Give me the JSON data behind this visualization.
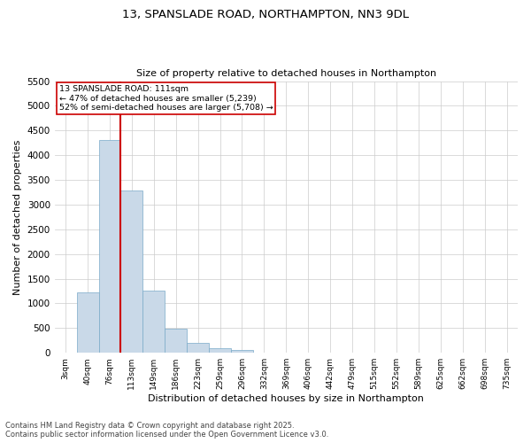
{
  "title1": "13, SPANSLADE ROAD, NORTHAMPTON, NN3 9DL",
  "title2": "Size of property relative to detached houses in Northampton",
  "xlabel": "Distribution of detached houses by size in Northampton",
  "ylabel": "Number of detached properties",
  "categories": [
    "3sqm",
    "40sqm",
    "76sqm",
    "113sqm",
    "149sqm",
    "186sqm",
    "223sqm",
    "259sqm",
    "296sqm",
    "332sqm",
    "369sqm",
    "406sqm",
    "442sqm",
    "479sqm",
    "515sqm",
    "552sqm",
    "589sqm",
    "625sqm",
    "662sqm",
    "698sqm",
    "735sqm"
  ],
  "values": [
    0,
    1220,
    4300,
    3280,
    1260,
    490,
    200,
    90,
    50,
    0,
    0,
    0,
    0,
    0,
    0,
    0,
    0,
    0,
    0,
    0,
    0
  ],
  "bar_color": "#c9d9e8",
  "bar_edgecolor": "#7aaac8",
  "vline_index": 3,
  "vline_color": "#cc0000",
  "annotation_line1": "13 SPANSLADE ROAD: 111sqm",
  "annotation_line2": "← 47% of detached houses are smaller (5,239)",
  "annotation_line3": "52% of semi-detached houses are larger (5,708) →",
  "annotation_box_color": "#cc0000",
  "ylim": [
    0,
    5500
  ],
  "yticks": [
    0,
    500,
    1000,
    1500,
    2000,
    2500,
    3000,
    3500,
    4000,
    4500,
    5000,
    5500
  ],
  "footer1": "Contains HM Land Registry data © Crown copyright and database right 2025.",
  "footer2": "Contains public sector information licensed under the Open Government Licence v3.0.",
  "background_color": "#ffffff",
  "grid_color": "#cccccc"
}
